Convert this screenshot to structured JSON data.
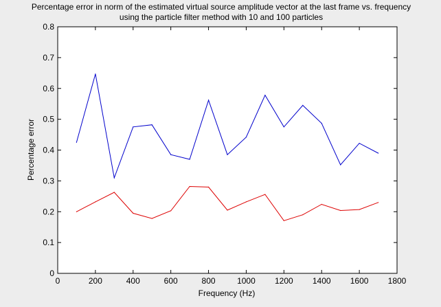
{
  "chart_data": {
    "type": "line",
    "title": [
      "Percentage error in norm of the estimated virtual source amplitude vector at the last frame vs. frequency",
      "using the particle filter method with 10 and 100 particles"
    ],
    "xlabel": "Frequency (Hz)",
    "ylabel": "Percentage error",
    "xlim": [
      0,
      1800
    ],
    "ylim": [
      0,
      0.8
    ],
    "xticks": [
      0,
      200,
      400,
      600,
      800,
      1000,
      1200,
      1400,
      1600,
      1800
    ],
    "xtick_labels": [
      "0",
      "200",
      "400",
      "600",
      "800",
      "1000",
      "1200",
      "1400",
      "1600",
      "1800"
    ],
    "yticks": [
      0,
      0.1,
      0.2,
      0.3,
      0.4,
      0.5,
      0.6,
      0.7,
      0.8
    ],
    "ytick_labels": [
      "0",
      "0.1",
      "0.2",
      "0.3",
      "0.4",
      "0.5",
      "0.6",
      "0.7",
      "0.8"
    ],
    "grid": false,
    "x": [
      100,
      200,
      300,
      400,
      500,
      600,
      700,
      800,
      900,
      1000,
      1100,
      1200,
      1300,
      1400,
      1500,
      1600,
      1700
    ],
    "series": [
      {
        "color": "#0000cc",
        "values": [
          0.425,
          0.647,
          0.31,
          0.475,
          0.482,
          0.385,
          0.37,
          0.562,
          0.385,
          0.442,
          0.578,
          0.475,
          0.545,
          0.487,
          0.352,
          0.422,
          0.39
        ]
      },
      {
        "color": "#dd0000",
        "values": [
          0.2,
          0.232,
          0.263,
          0.195,
          0.178,
          0.203,
          0.282,
          0.28,
          0.205,
          0.232,
          0.256,
          0.171,
          0.19,
          0.224,
          0.204,
          0.207,
          0.23
        ]
      }
    ]
  }
}
